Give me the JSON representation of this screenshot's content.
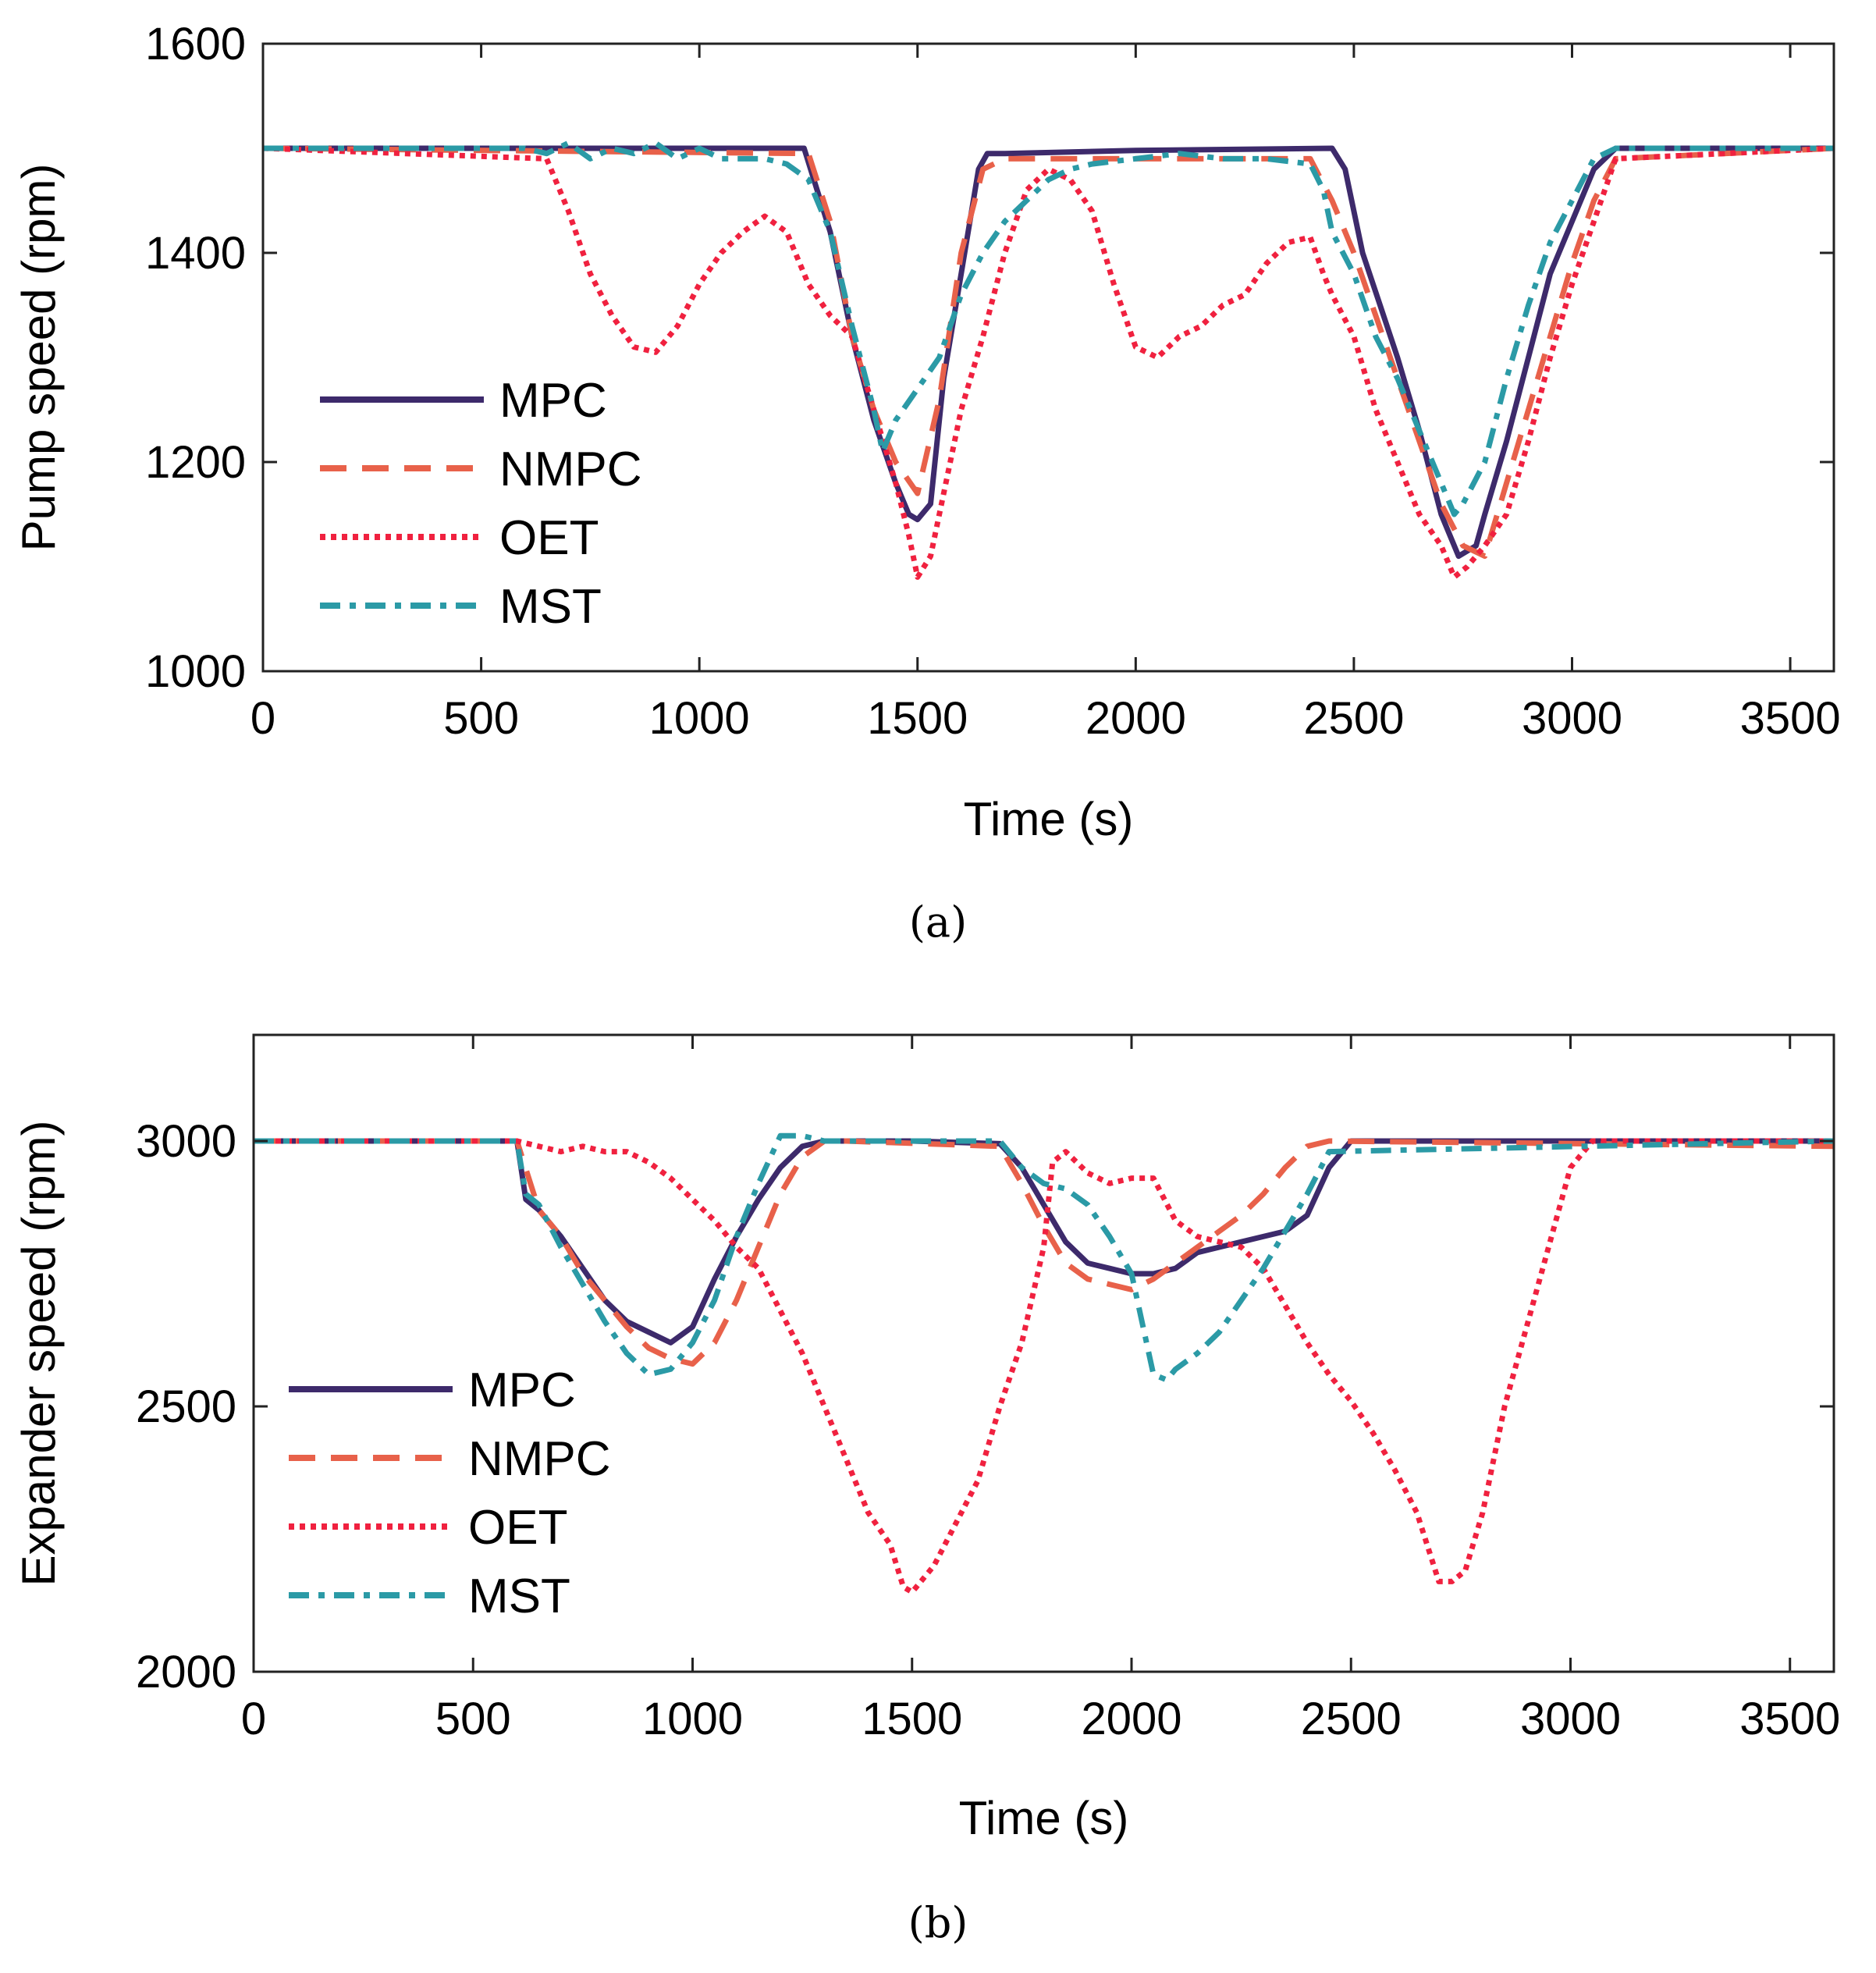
{
  "legend_labels": [
    "MPC",
    "NMPC",
    "OET",
    "MST"
  ],
  "series_colors": {
    "MPC": "#3d2a6b",
    "NMPC": "#e8614a",
    "OET": "#f0213f",
    "MST": "#2b9aa6"
  },
  "chart_data": [
    {
      "type": "line",
      "caption": "(a)",
      "xlabel": "Time (s)",
      "ylabel": "Pump speed (rpm)",
      "xlim": [
        0,
        3600
      ],
      "ylim": [
        1000,
        1600
      ],
      "xticks": [
        0,
        500,
        1000,
        1500,
        2000,
        2500,
        3000,
        3500
      ],
      "yticks": [
        1000,
        1200,
        1400,
        1600
      ],
      "legend_position": "lower-left",
      "series": [
        {
          "name": "MPC",
          "style": "solid",
          "x": [
            0,
            1240,
            1270,
            1300,
            1350,
            1400,
            1450,
            1480,
            1500,
            1530,
            1560,
            1600,
            1640,
            1660,
            1700,
            2000,
            2450,
            2480,
            2520,
            2560,
            2600,
            2650,
            2700,
            2740,
            2780,
            2800,
            2850,
            2900,
            2950,
            3000,
            3050,
            3100,
            3600
          ],
          "y": [
            1500,
            1500,
            1460,
            1420,
            1320,
            1240,
            1180,
            1150,
            1145,
            1160,
            1280,
            1380,
            1480,
            1495,
            1495,
            1498,
            1500,
            1480,
            1400,
            1350,
            1300,
            1230,
            1150,
            1110,
            1120,
            1150,
            1220,
            1300,
            1380,
            1430,
            1480,
            1500,
            1500
          ]
        },
        {
          "name": "NMPC",
          "style": "dashed",
          "x": [
            0,
            1250,
            1300,
            1350,
            1400,
            1450,
            1500,
            1550,
            1600,
            1650,
            1700,
            2000,
            2400,
            2450,
            2500,
            2550,
            2600,
            2650,
            2700,
            2750,
            2800,
            2850,
            2900,
            2950,
            3000,
            3050,
            3100,
            3600
          ],
          "y": [
            1500,
            1495,
            1430,
            1320,
            1250,
            1200,
            1170,
            1260,
            1400,
            1480,
            1490,
            1490,
            1490,
            1450,
            1400,
            1340,
            1280,
            1220,
            1160,
            1120,
            1110,
            1180,
            1250,
            1320,
            1390,
            1450,
            1490,
            1500
          ]
        },
        {
          "name": "OET",
          "style": "dotted",
          "x": [
            0,
            650,
            700,
            750,
            800,
            850,
            900,
            950,
            1000,
            1050,
            1100,
            1150,
            1200,
            1250,
            1300,
            1350,
            1400,
            1450,
            1480,
            1500,
            1530,
            1560,
            1600,
            1650,
            1700,
            1750,
            1800,
            1850,
            1900,
            1950,
            2000,
            2050,
            2100,
            2150,
            2200,
            2250,
            2300,
            2350,
            2400,
            2430,
            2450,
            2500,
            2550,
            2600,
            2650,
            2700,
            2730,
            2760,
            2800,
            2850,
            2900,
            2950,
            3000,
            3050,
            3100,
            3600
          ],
          "y": [
            1500,
            1490,
            1440,
            1380,
            1340,
            1310,
            1305,
            1330,
            1370,
            1400,
            1420,
            1435,
            1420,
            1370,
            1340,
            1320,
            1250,
            1180,
            1130,
            1090,
            1110,
            1170,
            1250,
            1320,
            1400,
            1460,
            1480,
            1470,
            1440,
            1370,
            1310,
            1300,
            1320,
            1330,
            1350,
            1360,
            1390,
            1410,
            1415,
            1380,
            1360,
            1320,
            1250,
            1200,
            1150,
            1120,
            1090,
            1100,
            1120,
            1150,
            1220,
            1300,
            1370,
            1430,
            1490,
            1500
          ]
        },
        {
          "name": "MST",
          "style": "dashdot",
          "x": [
            0,
            600,
            650,
            700,
            750,
            800,
            850,
            900,
            950,
            1000,
            1050,
            1100,
            1150,
            1200,
            1250,
            1300,
            1350,
            1400,
            1420,
            1450,
            1500,
            1550,
            1600,
            1650,
            1700,
            1750,
            1800,
            1850,
            1900,
            2000,
            2100,
            2200,
            2300,
            2400,
            2430,
            2450,
            2500,
            2550,
            2600,
            2650,
            2700,
            2730,
            2750,
            2800,
            2850,
            2900,
            2950,
            3000,
            3050,
            3100,
            3600
          ],
          "y": [
            1500,
            1500,
            1495,
            1505,
            1490,
            1500,
            1495,
            1505,
            1490,
            1500,
            1490,
            1490,
            1490,
            1485,
            1470,
            1420,
            1330,
            1250,
            1210,
            1240,
            1270,
            1300,
            1360,
            1400,
            1430,
            1450,
            1470,
            1480,
            1485,
            1490,
            1495,
            1490,
            1490,
            1485,
            1460,
            1420,
            1380,
            1320,
            1280,
            1230,
            1180,
            1150,
            1160,
            1200,
            1280,
            1350,
            1410,
            1450,
            1490,
            1500,
            1500
          ]
        }
      ]
    },
    {
      "type": "line",
      "caption": "(b)",
      "xlabel": "Time (s)",
      "ylabel": "Expander speed (rpm)",
      "xlim": [
        0,
        3600
      ],
      "ylim": [
        2000,
        3200
      ],
      "xticks": [
        0,
        500,
        1000,
        1500,
        2000,
        2500,
        3000,
        3500
      ],
      "yticks": [
        2000,
        2500,
        3000
      ],
      "legend_position": "lower-left",
      "series": [
        {
          "name": "MPC",
          "style": "solid",
          "x": [
            0,
            600,
            620,
            650,
            700,
            750,
            800,
            850,
            900,
            950,
            1000,
            1050,
            1100,
            1150,
            1200,
            1250,
            1300,
            1500,
            1700,
            1750,
            1800,
            1850,
            1900,
            1950,
            2000,
            2050,
            2100,
            2150,
            2200,
            2250,
            2300,
            2350,
            2400,
            2450,
            2500,
            3000,
            3600
          ],
          "y": [
            3000,
            3000,
            2890,
            2870,
            2820,
            2760,
            2700,
            2660,
            2640,
            2620,
            2650,
            2740,
            2820,
            2890,
            2950,
            2990,
            3000,
            3000,
            2995,
            2950,
            2880,
            2810,
            2770,
            2760,
            2750,
            2750,
            2760,
            2790,
            2800,
            2810,
            2820,
            2830,
            2860,
            2950,
            3000,
            3000,
            3000
          ]
        },
        {
          "name": "NMPC",
          "style": "dashed",
          "x": [
            0,
            600,
            650,
            700,
            750,
            800,
            850,
            900,
            950,
            1000,
            1050,
            1100,
            1150,
            1200,
            1250,
            1300,
            1350,
            1700,
            1750,
            1800,
            1850,
            1900,
            1950,
            2000,
            2050,
            2100,
            2150,
            2200,
            2250,
            2300,
            2350,
            2400,
            2450,
            3600
          ],
          "y": [
            3000,
            3000,
            2870,
            2820,
            2750,
            2700,
            2650,
            2610,
            2590,
            2580,
            2620,
            2700,
            2800,
            2900,
            2970,
            3000,
            3000,
            2990,
            2920,
            2840,
            2770,
            2740,
            2730,
            2720,
            2740,
            2770,
            2800,
            2830,
            2860,
            2900,
            2950,
            2990,
            3000,
            2990
          ]
        },
        {
          "name": "OET",
          "style": "dotted",
          "x": [
            0,
            600,
            650,
            700,
            750,
            800,
            850,
            900,
            950,
            1000,
            1050,
            1100,
            1150,
            1200,
            1250,
            1300,
            1350,
            1400,
            1450,
            1480,
            1500,
            1550,
            1600,
            1650,
            1700,
            1750,
            1800,
            1820,
            1850,
            1900,
            1950,
            2000,
            2050,
            2100,
            2150,
            2200,
            2250,
            2300,
            2350,
            2400,
            2450,
            2500,
            2550,
            2600,
            2650,
            2700,
            2730,
            2760,
            2800,
            2850,
            2900,
            2950,
            3000,
            3050,
            3600
          ],
          "y": [
            3000,
            3000,
            2990,
            2980,
            2990,
            2980,
            2980,
            2960,
            2930,
            2890,
            2850,
            2800,
            2760,
            2680,
            2600,
            2500,
            2400,
            2300,
            2240,
            2160,
            2150,
            2200,
            2280,
            2360,
            2500,
            2620,
            2800,
            2960,
            2980,
            2940,
            2920,
            2930,
            2930,
            2850,
            2820,
            2810,
            2800,
            2760,
            2690,
            2620,
            2560,
            2510,
            2450,
            2380,
            2300,
            2170,
            2170,
            2190,
            2300,
            2500,
            2650,
            2800,
            2950,
            3000,
            3000
          ]
        },
        {
          "name": "MST",
          "style": "dashdot",
          "x": [
            0,
            600,
            620,
            650,
            700,
            750,
            800,
            850,
            900,
            950,
            1000,
            1050,
            1100,
            1150,
            1200,
            1250,
            1300,
            1500,
            1700,
            1750,
            1800,
            1850,
            1900,
            1950,
            2000,
            2050,
            2080,
            2100,
            2150,
            2200,
            2250,
            2300,
            2350,
            2400,
            2450,
            3600
          ],
          "y": [
            3000,
            3000,
            2900,
            2880,
            2800,
            2730,
            2660,
            2600,
            2560,
            2570,
            2620,
            2700,
            2820,
            2920,
            3010,
            3010,
            3000,
            3000,
            3000,
            2950,
            2920,
            2910,
            2880,
            2820,
            2750,
            2560,
            2550,
            2570,
            2600,
            2640,
            2700,
            2760,
            2830,
            2900,
            2980,
            3000
          ]
        }
      ]
    }
  ]
}
